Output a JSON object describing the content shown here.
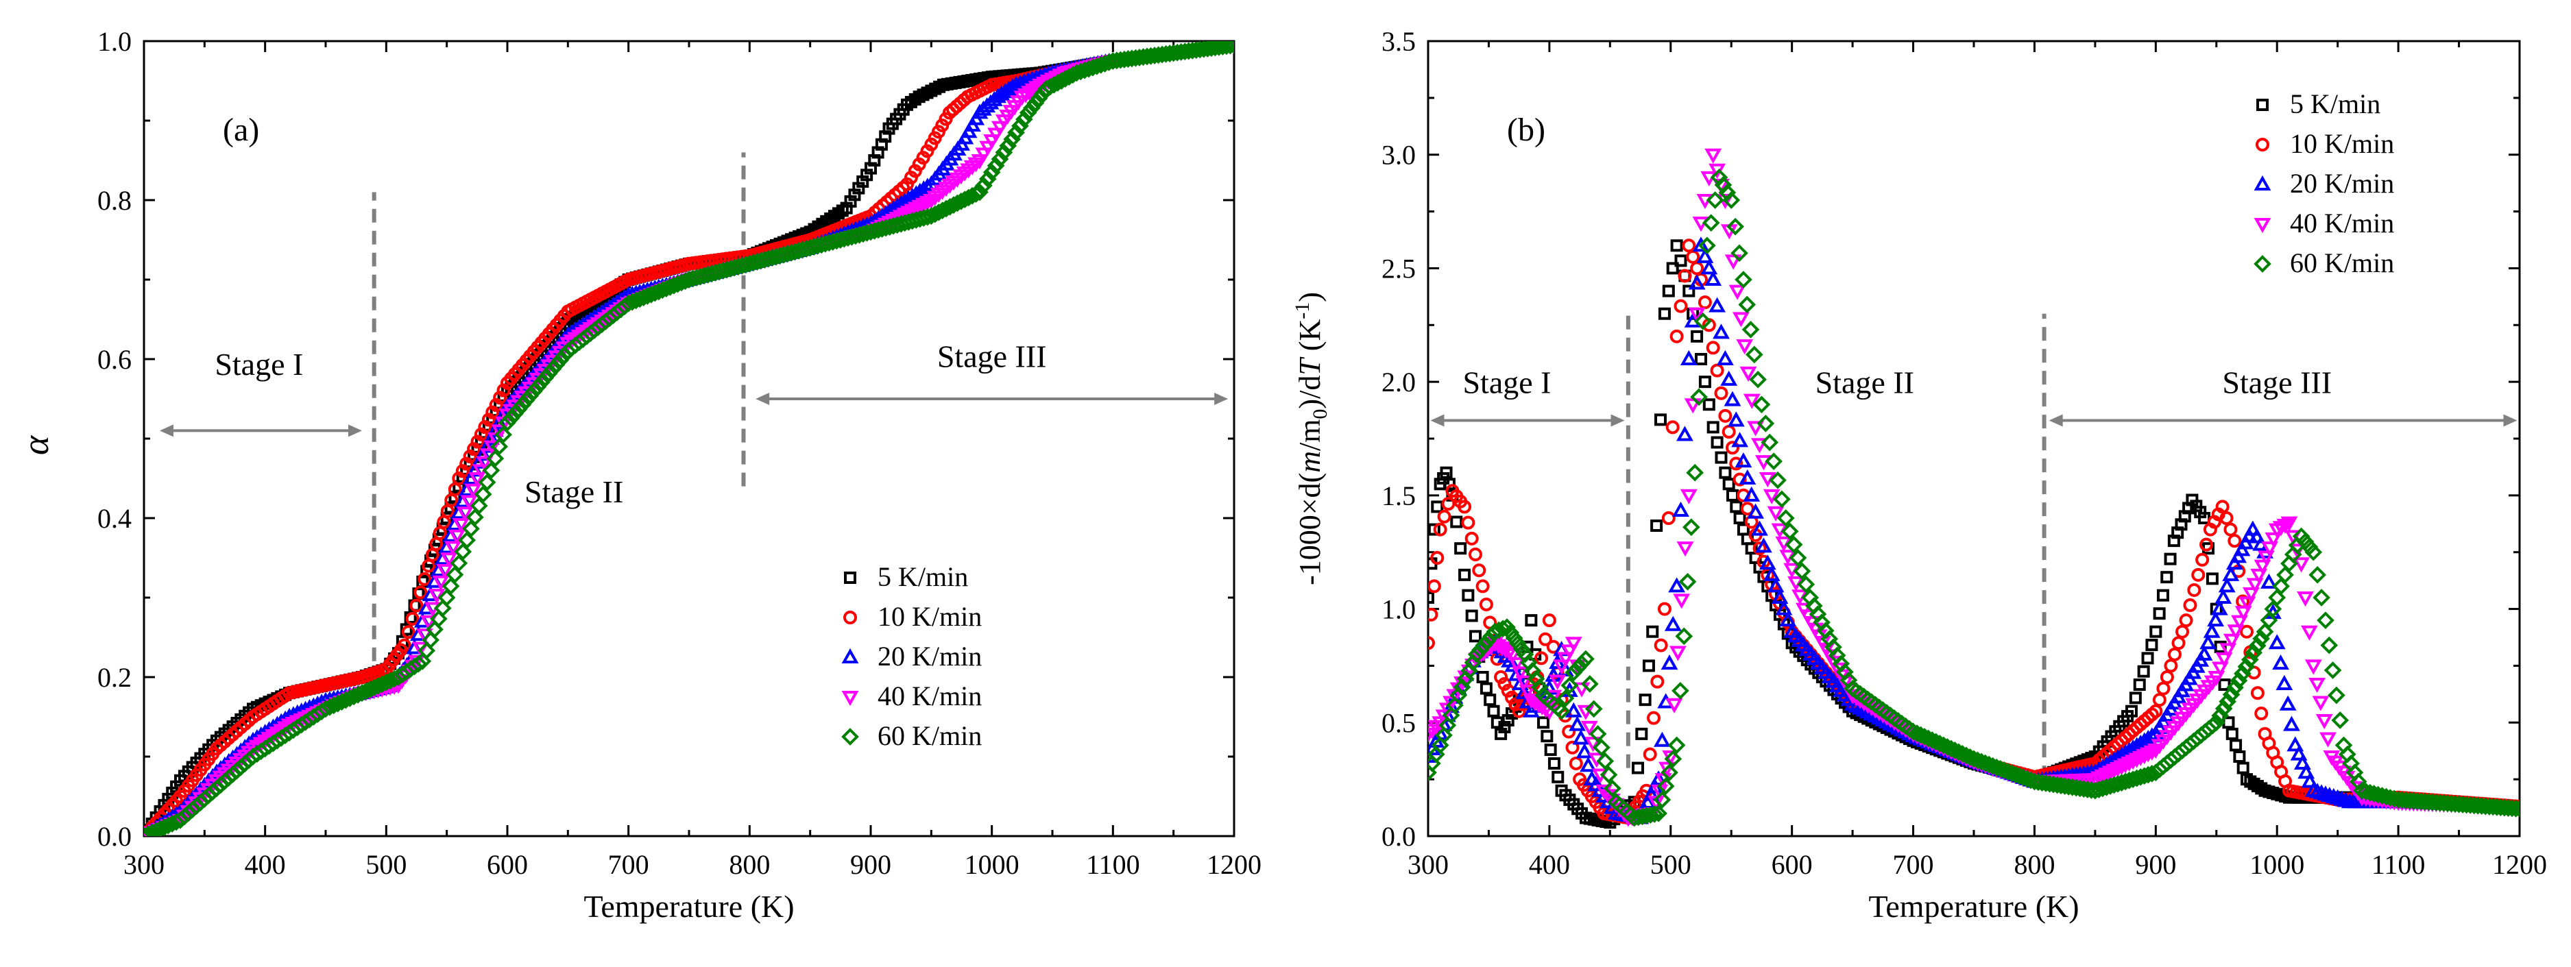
{
  "chart_data": [
    {
      "panel": "a",
      "type": "scatter",
      "label": "(a)",
      "xlabel": "Temperature (K)",
      "ylabel": "α",
      "xlim": [
        300,
        1200
      ],
      "ylim": [
        0,
        1.0
      ],
      "xticks": [
        300,
        400,
        500,
        600,
        700,
        800,
        900,
        1000,
        1100,
        1200
      ],
      "yticks": [
        0.0,
        0.2,
        0.4,
        0.6,
        0.8,
        1.0
      ],
      "ytick_labels": [
        "0.0",
        "0.2",
        "0.4",
        "0.6",
        "0.8",
        "1.0"
      ],
      "legend": {
        "position": "lower-right"
      },
      "stage_dividers": [
        490,
        795
      ],
      "dividers_y": [
        [
          0.22,
          0.81
        ],
        [
          0.44,
          0.86
        ]
      ],
      "stages": [
        {
          "label": "Stage I",
          "text_at": [
            395,
            0.58
          ],
          "arrow": [
            313,
            480,
            0.51
          ]
        },
        {
          "label": "Stage II",
          "text_at": [
            655,
            0.42
          ]
        },
        {
          "label": "Stage III",
          "text_at": [
            1000,
            0.59
          ],
          "arrow": [
            805,
            1195,
            0.55
          ]
        }
      ],
      "series": [
        {
          "name": "5  K/min",
          "color": "#000000",
          "marker": "square",
          "x": [
            300,
            330,
            360,
            390,
            420,
            450,
            480,
            500,
            510,
            530,
            560,
            600,
            650,
            700,
            750,
            800,
            850,
            880,
            900,
            915,
            930,
            940,
            960,
            980,
            1000,
            1040,
            1100,
            1150,
            1200
          ],
          "y": [
            0.0,
            0.07,
            0.12,
            0.16,
            0.18,
            0.19,
            0.2,
            0.21,
            0.23,
            0.32,
            0.44,
            0.56,
            0.65,
            0.7,
            0.72,
            0.73,
            0.76,
            0.79,
            0.84,
            0.89,
            0.92,
            0.93,
            0.945,
            0.95,
            0.955,
            0.96,
            0.975,
            0.985,
            0.995
          ]
        },
        {
          "name": "10 K/min",
          "color": "#ff0000",
          "marker": "circle",
          "x": [
            300,
            330,
            360,
            390,
            420,
            450,
            480,
            500,
            515,
            535,
            560,
            600,
            650,
            700,
            750,
            800,
            850,
            900,
            930,
            950,
            965,
            980,
            1000,
            1020,
            1050,
            1100,
            1150,
            1200
          ],
          "y": [
            0.0,
            0.05,
            0.11,
            0.15,
            0.18,
            0.19,
            0.2,
            0.21,
            0.24,
            0.34,
            0.45,
            0.57,
            0.66,
            0.7,
            0.72,
            0.73,
            0.75,
            0.78,
            0.82,
            0.87,
            0.91,
            0.93,
            0.945,
            0.95,
            0.96,
            0.975,
            0.985,
            0.995
          ]
        },
        {
          "name": "20 K/min",
          "color": "#0000ff",
          "marker": "triangle-up",
          "x": [
            300,
            330,
            360,
            390,
            420,
            450,
            480,
            505,
            520,
            540,
            570,
            600,
            650,
            700,
            750,
            800,
            850,
            900,
            950,
            975,
            990,
            1005,
            1020,
            1050,
            1100,
            1150,
            1200
          ],
          "y": [
            0.0,
            0.03,
            0.08,
            0.12,
            0.15,
            0.17,
            0.18,
            0.19,
            0.22,
            0.32,
            0.45,
            0.54,
            0.63,
            0.68,
            0.7,
            0.72,
            0.74,
            0.77,
            0.82,
            0.87,
            0.91,
            0.93,
            0.945,
            0.96,
            0.975,
            0.985,
            0.995
          ]
        },
        {
          "name": "40 K/min",
          "color": "#ff00ff",
          "marker": "triangle-down",
          "x": [
            300,
            330,
            360,
            390,
            420,
            450,
            480,
            510,
            525,
            545,
            575,
            600,
            650,
            700,
            750,
            800,
            850,
            900,
            950,
            990,
            1010,
            1025,
            1040,
            1060,
            1100,
            1150,
            1200
          ],
          "y": [
            0.0,
            0.02,
            0.07,
            0.11,
            0.14,
            0.16,
            0.18,
            0.19,
            0.22,
            0.32,
            0.45,
            0.53,
            0.62,
            0.67,
            0.7,
            0.72,
            0.74,
            0.76,
            0.8,
            0.85,
            0.9,
            0.93,
            0.945,
            0.96,
            0.975,
            0.985,
            0.995
          ]
        },
        {
          "name": "60 K/min",
          "color": "#008000",
          "marker": "diamond",
          "x": [
            300,
            330,
            360,
            390,
            420,
            450,
            480,
            510,
            530,
            550,
            580,
            600,
            650,
            700,
            750,
            800,
            850,
            900,
            950,
            990,
            1010,
            1030,
            1045,
            1070,
            1100,
            1150,
            1200
          ],
          "y": [
            0.0,
            0.02,
            0.06,
            0.1,
            0.13,
            0.16,
            0.18,
            0.2,
            0.22,
            0.3,
            0.43,
            0.52,
            0.61,
            0.67,
            0.7,
            0.72,
            0.74,
            0.76,
            0.78,
            0.81,
            0.86,
            0.91,
            0.94,
            0.96,
            0.975,
            0.985,
            0.995
          ]
        }
      ]
    },
    {
      "panel": "b",
      "type": "scatter",
      "label": "(b)",
      "xlabel": "Temperature (K)",
      "ylabel": "-1000×d(m/m0)/dT (K-1)",
      "ylabel_parts": {
        "pre": "-1000×d(",
        "m": "m",
        "slash": "/m",
        "sub0": "0",
        "mid": ")/d",
        "T": "T",
        "unit": " (K",
        "sup": "-1",
        "close": ")"
      },
      "xlim": [
        300,
        1200
      ],
      "ylim": [
        0,
        3.5
      ],
      "xticks": [
        300,
        400,
        500,
        600,
        700,
        800,
        900,
        1000,
        1100,
        1200
      ],
      "yticks": [
        0.0,
        0.5,
        1.0,
        1.5,
        2.0,
        2.5,
        3.0,
        3.5
      ],
      "ytick_labels": [
        "0.0",
        "0.5",
        "1.0",
        "1.5",
        "2.0",
        "2.5",
        "3.0",
        "3.5"
      ],
      "legend": {
        "position": "top-right"
      },
      "stage_dividers": [
        465,
        808
      ],
      "dividers_y": [
        [
          0.3,
          2.3
        ],
        [
          0.25,
          2.3
        ]
      ],
      "stages": [
        {
          "label": "Stage I",
          "text_at": [
            365,
            1.95
          ],
          "arrow": [
            302,
            462,
            1.83
          ]
        },
        {
          "label": "Stage II",
          "text_at": [
            660,
            1.95
          ]
        },
        {
          "label": "Stage III",
          "text_at": [
            1000,
            1.95
          ],
          "arrow": [
            812,
            1198,
            1.83
          ]
        }
      ],
      "series": [
        {
          "name": "5  K/min",
          "color": "#000000",
          "marker": "square",
          "x": [
            300,
            305,
            310,
            315,
            320,
            330,
            345,
            360,
            375,
            385,
            395,
            410,
            430,
            450,
            470,
            485,
            495,
            505,
            515,
            525,
            535,
            545,
            560,
            580,
            600,
            650,
            700,
            750,
            800,
            850,
            880,
            900,
            915,
            930,
            940,
            950,
            960,
            975,
            990,
            1010,
            1050,
            1100,
            1150,
            1200
          ],
          "y": [
            1.05,
            1.35,
            1.55,
            1.6,
            1.5,
            1.15,
            0.7,
            0.45,
            0.6,
            0.95,
            0.5,
            0.2,
            0.08,
            0.06,
            0.15,
            0.9,
            2.3,
            2.6,
            2.4,
            2.1,
            1.8,
            1.6,
            1.35,
            1.1,
            0.85,
            0.55,
            0.42,
            0.32,
            0.25,
            0.35,
            0.55,
            0.9,
            1.3,
            1.48,
            1.4,
            1.0,
            0.5,
            0.25,
            0.2,
            0.17,
            0.17,
            0.17,
            0.15,
            0.13
          ]
        },
        {
          "name": "10 K/min",
          "color": "#ff0000",
          "marker": "circle",
          "x": [
            300,
            305,
            310,
            320,
            330,
            345,
            360,
            375,
            390,
            400,
            410,
            425,
            445,
            465,
            480,
            495,
            505,
            515,
            525,
            535,
            545,
            560,
            580,
            600,
            650,
            700,
            750,
            800,
            850,
            900,
            925,
            945,
            955,
            965,
            975,
            990,
            1010,
            1050,
            1100,
            1150,
            1200
          ],
          "y": [
            0.85,
            1.1,
            1.35,
            1.52,
            1.45,
            1.1,
            0.7,
            0.55,
            0.7,
            0.95,
            0.6,
            0.25,
            0.1,
            0.08,
            0.2,
            1.0,
            2.2,
            2.6,
            2.45,
            2.15,
            1.85,
            1.5,
            1.15,
            0.9,
            0.58,
            0.44,
            0.33,
            0.26,
            0.32,
            0.55,
            0.95,
            1.35,
            1.45,
            1.3,
            0.9,
            0.45,
            0.2,
            0.16,
            0.17,
            0.15,
            0.13
          ]
        },
        {
          "name": "20 K/min",
          "color": "#0000ff",
          "marker": "triangle-up",
          "x": [
            300,
            310,
            325,
            340,
            355,
            370,
            385,
            400,
            410,
            420,
            435,
            455,
            475,
            490,
            505,
            515,
            525,
            535,
            545,
            560,
            580,
            600,
            650,
            700,
            750,
            800,
            850,
            900,
            940,
            965,
            980,
            990,
            1000,
            1015,
            1030,
            1060,
            1100,
            1150,
            1200
          ],
          "y": [
            0.35,
            0.45,
            0.65,
            0.8,
            0.85,
            0.75,
            0.55,
            0.65,
            0.82,
            0.55,
            0.25,
            0.1,
            0.08,
            0.25,
            1.1,
            2.1,
            2.6,
            2.45,
            2.1,
            1.65,
            1.2,
            0.9,
            0.58,
            0.44,
            0.33,
            0.24,
            0.28,
            0.45,
            0.8,
            1.2,
            1.35,
            1.25,
            0.85,
            0.4,
            0.2,
            0.15,
            0.15,
            0.14,
            0.12
          ]
        },
        {
          "name": "40 K/min",
          "color": "#ff00ff",
          "marker": "triangle-down",
          "x": [
            300,
            310,
            325,
            340,
            355,
            370,
            385,
            400,
            410,
            420,
            430,
            445,
            465,
            485,
            500,
            515,
            525,
            535,
            545,
            555,
            570,
            590,
            610,
            650,
            700,
            750,
            800,
            850,
            900,
            950,
            985,
            1000,
            1010,
            1020,
            1030,
            1045,
            1070,
            1100,
            1150,
            1200
          ],
          "y": [
            0.45,
            0.5,
            0.65,
            0.78,
            0.85,
            0.8,
            0.6,
            0.55,
            0.75,
            0.85,
            0.55,
            0.2,
            0.08,
            0.1,
            0.35,
            1.5,
            2.7,
            3.0,
            2.8,
            2.4,
            1.8,
            1.35,
            1.0,
            0.62,
            0.45,
            0.33,
            0.24,
            0.25,
            0.38,
            0.7,
            1.15,
            1.35,
            1.38,
            1.2,
            0.75,
            0.35,
            0.17,
            0.15,
            0.14,
            0.12
          ]
        },
        {
          "name": "60 K/min",
          "color": "#008000",
          "marker": "diamond",
          "x": [
            300,
            310,
            325,
            340,
            355,
            365,
            380,
            395,
            410,
            420,
            430,
            440,
            455,
            470,
            490,
            505,
            520,
            530,
            540,
            550,
            560,
            575,
            595,
            615,
            650,
            700,
            750,
            800,
            850,
            900,
            950,
            990,
            1010,
            1020,
            1030,
            1040,
            1055,
            1070,
            1100,
            1150,
            1200
          ],
          "y": [
            0.28,
            0.4,
            0.62,
            0.8,
            0.9,
            0.92,
            0.8,
            0.62,
            0.55,
            0.72,
            0.78,
            0.45,
            0.15,
            0.08,
            0.1,
            0.4,
            1.6,
            2.6,
            2.9,
            2.8,
            2.45,
            1.9,
            1.4,
            1.05,
            0.65,
            0.46,
            0.34,
            0.24,
            0.2,
            0.28,
            0.5,
            0.9,
            1.2,
            1.32,
            1.25,
            0.95,
            0.4,
            0.2,
            0.16,
            0.14,
            0.12
          ]
        }
      ]
    }
  ]
}
